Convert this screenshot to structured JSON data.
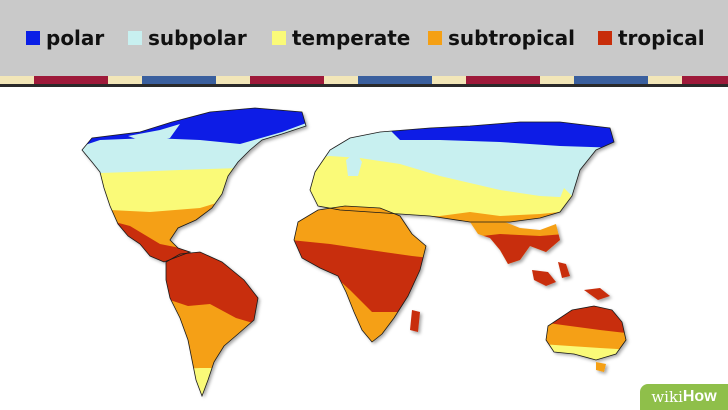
{
  "legend": [
    {
      "label": "polar",
      "color": "#0a1ee6"
    },
    {
      "label": "subpolar",
      "color": "#c8f0f0"
    },
    {
      "label": "temperate",
      "color": "#fafa78"
    },
    {
      "label": "subtropical",
      "color": "#f5a014"
    },
    {
      "label": "tropical",
      "color": "#c82d0a"
    }
  ],
  "stripe_colors": [
    "#f2e6b8",
    "#9e1a3a",
    "#f2e6b8",
    "#3a5f9e"
  ],
  "watermark": {
    "prefix": "wiki",
    "suffix": "How"
  }
}
